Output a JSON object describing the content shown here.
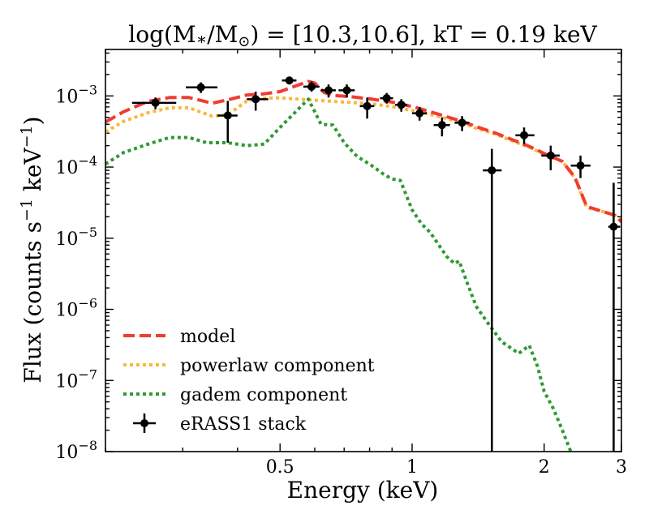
{
  "chart_data": {
    "type": "line",
    "title_parts": {
      "prefix": "log(M",
      "star": "∗",
      "slash": "/M",
      "sun": "⊙",
      "suffix": ") = [10.3,10.6], kT = 0.19 keV"
    },
    "xlabel": "Energy (keV)",
    "ylabel_parts": {
      "main": "Flux (counts s",
      "exp1": "−1",
      "mid": " keV",
      "exp2": "−1",
      "end": ")"
    },
    "xscale": "log",
    "yscale": "log",
    "xlim": [
      0.2,
      3.0
    ],
    "ylim": [
      1e-08,
      0.0045
    ],
    "x_ticks": [
      {
        "value": 0.5,
        "label": "0.5"
      },
      {
        "value": 1,
        "label": "1"
      },
      {
        "value": 2,
        "label": "2"
      },
      {
        "value": 3,
        "label": "3"
      }
    ],
    "y_ticks": [
      {
        "value": 0.001,
        "base": "10",
        "exp": "−3"
      },
      {
        "value": 0.0001,
        "base": "10",
        "exp": "−4"
      },
      {
        "value": 1e-05,
        "base": "10",
        "exp": "−5"
      },
      {
        "value": 1e-06,
        "base": "10",
        "exp": "−6"
      },
      {
        "value": 1e-07,
        "base": "10",
        "exp": "−7"
      },
      {
        "value": 1e-08,
        "base": "10",
        "exp": "−8"
      }
    ],
    "legend_position": "lower-left",
    "series": [
      {
        "name": "powerlaw component",
        "color": "#FDB63B",
        "style": "dotted",
        "x": [
          0.2,
          0.22,
          0.25,
          0.28,
          0.31,
          0.35,
          0.38,
          0.42,
          0.46,
          0.5,
          0.55,
          0.6,
          0.66,
          0.72,
          0.8,
          0.9,
          1.0,
          1.1,
          1.2,
          1.3,
          1.4,
          1.55,
          1.7,
          1.85,
          2.0,
          2.2,
          2.35,
          2.5,
          2.7,
          2.9,
          3.0
        ],
        "y": [
          0.00031,
          0.00044,
          0.00058,
          0.00068,
          0.00068,
          0.00052,
          0.00054,
          0.00085,
          0.00093,
          0.00094,
          0.0009,
          0.00087,
          0.00084,
          0.00081,
          0.00078,
          0.00071,
          0.00062,
          0.00055,
          0.00048,
          0.00042,
          0.00035,
          0.00029,
          0.00023,
          0.00019,
          0.00015,
          0.00012,
          7e-05,
          2.7e-05,
          2.4e-05,
          2.1e-05,
          1.7e-05
        ]
      },
      {
        "name": "model",
        "color": "#EE3D32",
        "style": "dashed",
        "x": [
          0.2,
          0.22,
          0.25,
          0.28,
          0.31,
          0.35,
          0.38,
          0.42,
          0.46,
          0.5,
          0.55,
          0.58,
          0.6,
          0.63,
          0.66,
          0.72,
          0.8,
          0.9,
          1.0,
          1.1,
          1.2,
          1.3,
          1.4,
          1.55,
          1.7,
          1.85,
          2.0,
          2.2,
          2.35,
          2.5,
          2.7,
          2.9,
          3.0
        ],
        "y": [
          0.00043,
          0.0006,
          0.00084,
          0.00095,
          0.00095,
          0.00079,
          0.00088,
          0.00103,
          0.00107,
          0.00115,
          0.00142,
          0.0016,
          0.00152,
          0.00112,
          0.00102,
          0.00098,
          0.00091,
          0.00082,
          0.00071,
          0.0006,
          0.00051,
          0.00044,
          0.00037,
          0.0003,
          0.00024,
          0.000195,
          0.000155,
          0.00012,
          7.2e-05,
          2.8e-05,
          2.4e-05,
          2.1e-05,
          1.7e-05
        ]
      },
      {
        "name": "gadem component",
        "color": "#2E9A33",
        "style": "dotted",
        "x": [
          0.2,
          0.22,
          0.25,
          0.28,
          0.31,
          0.34,
          0.38,
          0.42,
          0.46,
          0.5,
          0.55,
          0.58,
          0.6,
          0.62,
          0.66,
          0.7,
          0.75,
          0.8,
          0.86,
          0.9,
          0.94,
          1.0,
          1.05,
          1.1,
          1.2,
          1.25,
          1.28,
          1.33,
          1.4,
          1.5,
          1.6,
          1.75,
          1.85,
          1.93,
          2.0,
          2.1,
          2.2,
          2.3
        ],
        "y": [
          0.00011,
          0.00016,
          0.00021,
          0.00026,
          0.00026,
          0.00022,
          0.00022,
          0.0002,
          0.00021,
          0.00036,
          0.00065,
          0.0009,
          0.0006,
          0.0004,
          0.00039,
          0.00022,
          0.00014,
          0.00011,
          8e-05,
          6.8e-05,
          6.5e-05,
          2.5e-05,
          1.6e-05,
          1.2e-05,
          5.5e-06,
          4.4e-06,
          4.8e-06,
          2.5e-06,
          1.1e-06,
          6e-07,
          3.5e-07,
          2.4e-07,
          3.1e-07,
          1.6e-07,
          7e-08,
          4e-08,
          2e-08,
          1e-08
        ]
      }
    ],
    "errorbar_series": {
      "name": "eRASS1 stack",
      "color": "#000000",
      "points": [
        {
          "x": 0.26,
          "xlo": 0.23,
          "xhi": 0.29,
          "y": 0.0008,
          "ylo": 0.00065,
          "yhi": 0.00095
        },
        {
          "x": 0.33,
          "xlo": 0.305,
          "xhi": 0.36,
          "y": 0.00132,
          "ylo": 0.0011,
          "yhi": 0.00155
        },
        {
          "x": 0.38,
          "xlo": 0.36,
          "xhi": 0.4,
          "y": 0.00053,
          "ylo": 0.00022,
          "yhi": 0.00085
        },
        {
          "x": 0.44,
          "xlo": 0.42,
          "xhi": 0.47,
          "y": 0.0009,
          "ylo": 0.00062,
          "yhi": 0.00115
        },
        {
          "x": 0.525,
          "xlo": 0.505,
          "xhi": 0.545,
          "y": 0.00165,
          "ylo": 0.00145,
          "yhi": 0.00185
        },
        {
          "x": 0.59,
          "xlo": 0.565,
          "xhi": 0.615,
          "y": 0.00135,
          "ylo": 0.00115,
          "yhi": 0.0016
        },
        {
          "x": 0.645,
          "xlo": 0.62,
          "xhi": 0.67,
          "y": 0.0012,
          "ylo": 0.00095,
          "yhi": 0.00145
        },
        {
          "x": 0.71,
          "xlo": 0.68,
          "xhi": 0.74,
          "y": 0.0012,
          "ylo": 0.00095,
          "yhi": 0.00145
        },
        {
          "x": 0.79,
          "xlo": 0.76,
          "xhi": 0.82,
          "y": 0.00072,
          "ylo": 0.00048,
          "yhi": 0.00095
        },
        {
          "x": 0.875,
          "xlo": 0.845,
          "xhi": 0.905,
          "y": 0.00093,
          "ylo": 0.00078,
          "yhi": 0.0011
        },
        {
          "x": 0.945,
          "xlo": 0.915,
          "xhi": 0.975,
          "y": 0.00075,
          "ylo": 0.0006,
          "yhi": 0.0009
        },
        {
          "x": 1.04,
          "xlo": 1.0,
          "xhi": 1.08,
          "y": 0.00057,
          "ylo": 0.00045,
          "yhi": 0.0007
        },
        {
          "x": 1.17,
          "xlo": 1.12,
          "xhi": 1.22,
          "y": 0.00039,
          "ylo": 0.00027,
          "yhi": 0.0005
        },
        {
          "x": 1.3,
          "xlo": 1.25,
          "xhi": 1.35,
          "y": 0.00042,
          "ylo": 0.00032,
          "yhi": 0.00052
        },
        {
          "x": 1.52,
          "xlo": 1.45,
          "xhi": 1.6,
          "y": 9e-05,
          "ylo": 1e-08,
          "yhi": 0.00018
        },
        {
          "x": 1.8,
          "xlo": 1.72,
          "xhi": 1.9,
          "y": 0.00028,
          "ylo": 0.00021,
          "yhi": 0.00036
        },
        {
          "x": 2.07,
          "xlo": 1.97,
          "xhi": 2.17,
          "y": 0.000145,
          "ylo": 9e-05,
          "yhi": 0.0002
        },
        {
          "x": 2.42,
          "xlo": 2.3,
          "xhi": 2.55,
          "y": 0.000105,
          "ylo": 7e-05,
          "yhi": 0.000145
        },
        {
          "x": 2.88,
          "xlo": 2.8,
          "xhi": 2.98,
          "y": 1.45e-05,
          "ylo": 1e-08,
          "yhi": 6e-05
        }
      ]
    },
    "legend": [
      {
        "label": "model",
        "color": "#EE3D32",
        "style": "dashed"
      },
      {
        "label": "powerlaw component",
        "color": "#FDB63B",
        "style": "dotted"
      },
      {
        "label": "gadem component",
        "color": "#2E9A33",
        "style": "dotted"
      },
      {
        "label": "eRASS1 stack",
        "color": "#000000",
        "style": "errorbar"
      }
    ]
  }
}
